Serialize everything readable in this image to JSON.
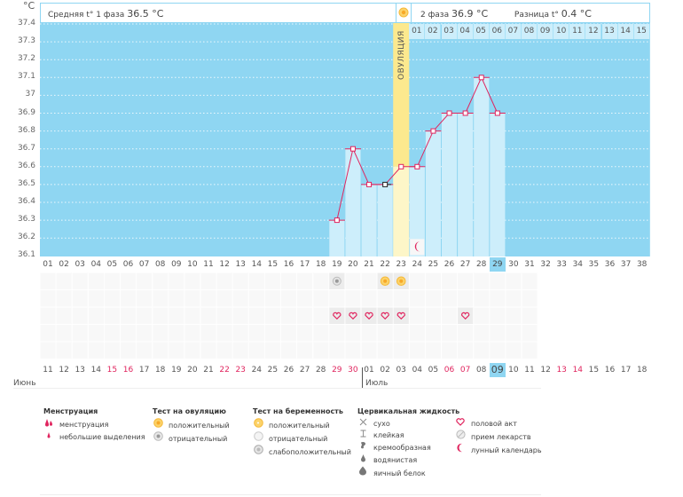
{
  "header": {
    "unit": "°C",
    "phase1_label": "Средняя t° 1 фаза",
    "phase1_value": "36.5 °C",
    "phase2_label": "2 фаза",
    "phase2_value": "36.9 °C",
    "diff_label": "Разница t°",
    "diff_value": "0.4 °C"
  },
  "ovulation_label": "ОВУЛЯЦИЯ",
  "phase2_days": [
    "01",
    "02",
    "03",
    "04",
    "05",
    "06",
    "07",
    "08",
    "09",
    "10",
    "11",
    "12",
    "13",
    "14",
    "15"
  ],
  "colors": {
    "chart_bg": "#8fd6f2",
    "bar": "#cdeefb",
    "ovulation": "#fce98e",
    "ovulation_light": "#fdf6c8",
    "line": "#e0245e",
    "weekend": "#e0245e",
    "highlight": "#8fd6f2"
  },
  "chart_data": {
    "type": "line",
    "title": "",
    "xlabel": "",
    "ylabel": "°C",
    "ylim": [
      36.1,
      37.4
    ],
    "yticks": [
      "37.4",
      "37.3",
      "37.2",
      "37.1",
      "37",
      "36.9",
      "36.8",
      "36.7",
      "36.6",
      "36.5",
      "36.4",
      "36.3",
      "36.2",
      "36.1"
    ],
    "cycle_days": [
      "01",
      "02",
      "03",
      "04",
      "05",
      "06",
      "07",
      "08",
      "09",
      "10",
      "11",
      "12",
      "13",
      "14",
      "15",
      "16",
      "17",
      "18",
      "19",
      "20",
      "21",
      "22",
      "23",
      "24",
      "25",
      "26",
      "27",
      "28",
      "29",
      "30",
      "31",
      "32",
      "33",
      "34",
      "35",
      "36",
      "37",
      "38"
    ],
    "current_cycle_day": "29",
    "ovulation_day": 23,
    "grid": true,
    "series": [
      {
        "name": "temperature",
        "x": [
          19,
          20,
          21,
          22,
          23,
          24,
          25,
          26,
          27,
          28,
          29
        ],
        "values": [
          36.3,
          36.7,
          36.5,
          36.5,
          36.6,
          36.6,
          36.8,
          36.9,
          36.9,
          37.1,
          36.9
        ],
        "excluded_points": [
          22
        ]
      }
    ]
  },
  "markers": {
    "ovulation_test_negative_day": 19,
    "ovulation_test_positive_days": [
      22,
      23
    ],
    "intercourse_days": [
      19,
      20,
      21,
      22,
      23,
      27
    ],
    "lunar_day": 24
  },
  "calendar": {
    "dates": [
      {
        "d": "11",
        "red": false
      },
      {
        "d": "12",
        "red": false
      },
      {
        "d": "13",
        "red": false
      },
      {
        "d": "14",
        "red": false
      },
      {
        "d": "15",
        "red": true
      },
      {
        "d": "16",
        "red": true
      },
      {
        "d": "17",
        "red": false
      },
      {
        "d": "18",
        "red": false
      },
      {
        "d": "19",
        "red": false
      },
      {
        "d": "20",
        "red": false
      },
      {
        "d": "21",
        "red": false
      },
      {
        "d": "22",
        "red": true
      },
      {
        "d": "23",
        "red": true
      },
      {
        "d": "24",
        "red": false
      },
      {
        "d": "25",
        "red": false
      },
      {
        "d": "26",
        "red": false
      },
      {
        "d": "27",
        "red": false
      },
      {
        "d": "28",
        "red": false
      },
      {
        "d": "29",
        "red": true
      },
      {
        "d": "30",
        "red": true
      },
      {
        "d": "01",
        "red": false
      },
      {
        "d": "02",
        "red": false
      },
      {
        "d": "03",
        "red": false
      },
      {
        "d": "04",
        "red": false
      },
      {
        "d": "05",
        "red": false
      },
      {
        "d": "06",
        "red": true
      },
      {
        "d": "07",
        "red": true
      },
      {
        "d": "08",
        "red": false
      },
      {
        "d": "09",
        "red": false
      },
      {
        "d": "10",
        "red": false
      },
      {
        "d": "11",
        "red": false
      },
      {
        "d": "12",
        "red": false
      },
      {
        "d": "13",
        "red": true
      },
      {
        "d": "14",
        "red": true
      },
      {
        "d": "15",
        "red": false
      },
      {
        "d": "16",
        "red": false
      },
      {
        "d": "17",
        "red": false
      },
      {
        "d": "18",
        "red": false
      }
    ],
    "today_index": 28,
    "month1": "Июнь",
    "month2": "Июль"
  },
  "legend": {
    "menstruation": {
      "title": "Менструация",
      "items": [
        "менструация",
        "небольшие выделения"
      ]
    },
    "ovulation_test": {
      "title": "Тест на овуляцию",
      "items": [
        "положительный",
        "отрицательный"
      ]
    },
    "pregnancy_test": {
      "title": "Тест на беременность",
      "items": [
        "положительный",
        "отрицательный",
        "слабоположительный"
      ]
    },
    "cervical": {
      "title": "Цервикальная жидкость",
      "items": [
        "сухо",
        "клейкая",
        "кремообразная",
        "водянистая",
        "яичный белок"
      ]
    },
    "other": {
      "items": [
        "половой акт",
        "прием лекарств",
        "лунный календарь"
      ]
    }
  }
}
